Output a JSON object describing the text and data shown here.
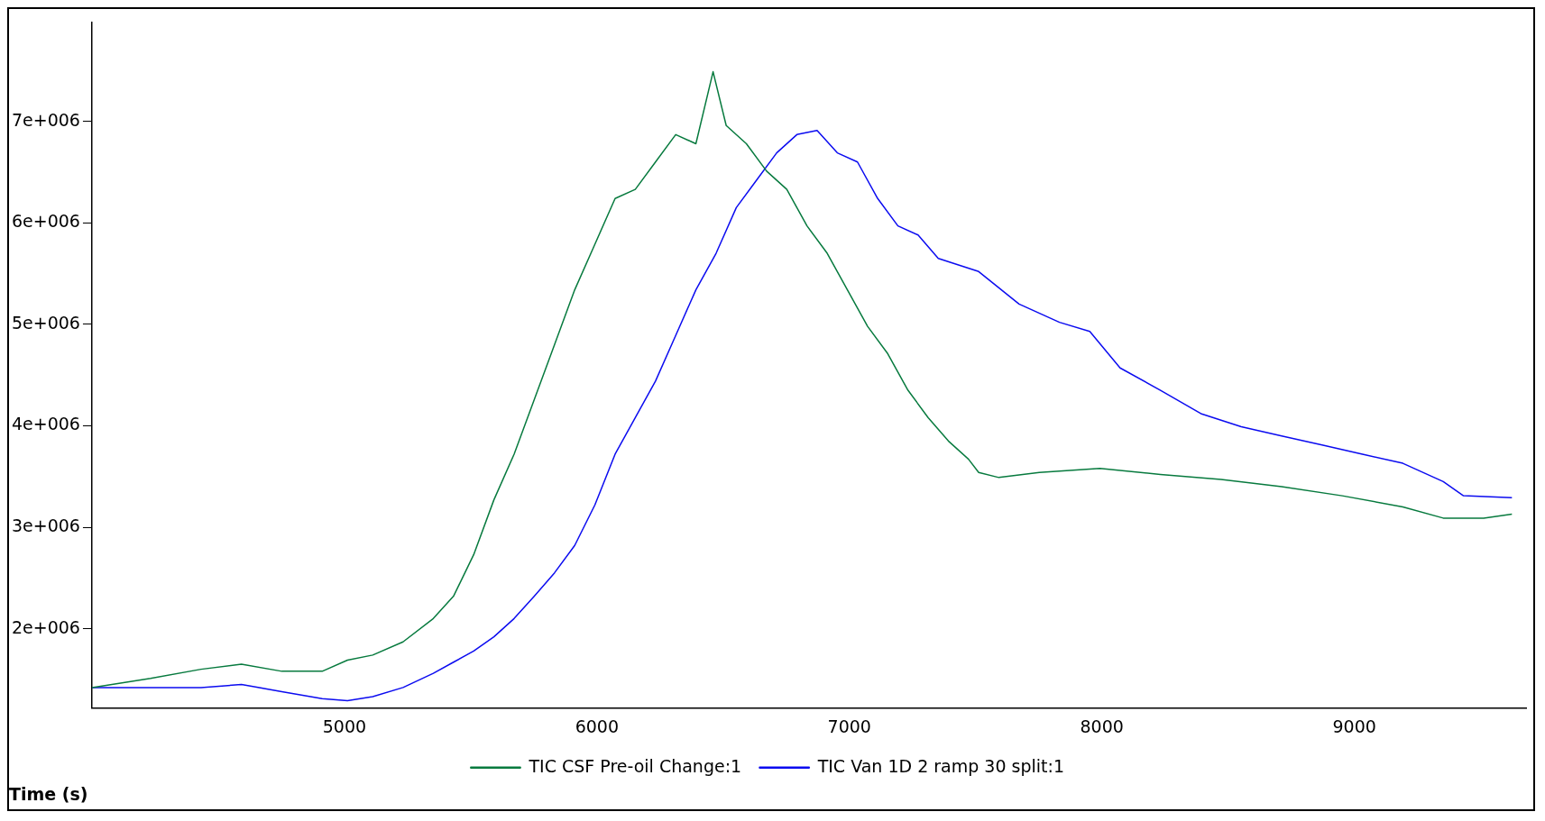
{
  "chart_data": {
    "type": "line",
    "xlabel": "Time (s)",
    "legend": "bottom",
    "marker": "none",
    "line_style": "solid",
    "grid": false,
    "xlim": [
      4000,
      9680
    ],
    "xticks": [
      5000,
      6000,
      7000,
      8000,
      9000
    ],
    "ylim": [
      1220000,
      7980000
    ],
    "yticks": [
      {
        "value": 2000000,
        "label": "2e+006"
      },
      {
        "value": 3000000,
        "label": "3e+006"
      },
      {
        "value": 4000000,
        "label": "4e+006"
      },
      {
        "value": 5000000,
        "label": "5e+006"
      },
      {
        "value": 6000000,
        "label": "6e+006"
      },
      {
        "value": 7000000,
        "label": "7e+006"
      }
    ],
    "series": [
      {
        "name": "TIC CSF Pre-oil Change:1",
        "color": "#077a3e",
        "x": [
          4000,
          4232,
          4432,
          4592,
          4752,
          4912,
          5012,
          5112,
          5232,
          5352,
          5432,
          5512,
          5592,
          5672,
          5752,
          5832,
          5912,
          5992,
          6072,
          6152,
          6232,
          6312,
          6392,
          6460,
          6512,
          6592,
          6672,
          6752,
          6832,
          6912,
          6992,
          7072,
          7152,
          7232,
          7312,
          7392,
          7472,
          7512,
          7592,
          7752,
          7992,
          8232,
          8472,
          8712,
          8952,
          9192,
          9352,
          9512,
          9624
        ],
        "values": [
          1420000,
          1510000,
          1600000,
          1650000,
          1580000,
          1580000,
          1690000,
          1740000,
          1870000,
          2100000,
          2320000,
          2730000,
          3270000,
          3720000,
          4260000,
          4800000,
          5340000,
          5790000,
          6240000,
          6330000,
          6600000,
          6870000,
          6780000,
          7490000,
          6960000,
          6780000,
          6510000,
          6330000,
          5970000,
          5700000,
          5340000,
          4980000,
          4710000,
          4350000,
          4080000,
          3850000,
          3670000,
          3540000,
          3490000,
          3540000,
          3580000,
          3520000,
          3470000,
          3400000,
          3310000,
          3200000,
          3090000,
          3090000,
          3130000
        ]
      },
      {
        "name": "TIC Van 1D 2 ramp 30 split:1",
        "color": "#0b0bf0",
        "x": [
          4000,
          4232,
          4432,
          4592,
          4752,
          4912,
          5012,
          5112,
          5232,
          5352,
          5432,
          5512,
          5592,
          5672,
          5752,
          5832,
          5912,
          5992,
          6072,
          6152,
          6232,
          6312,
          6392,
          6472,
          6552,
          6632,
          6712,
          6792,
          6872,
          6952,
          7032,
          7112,
          7192,
          7272,
          7352,
          7512,
          7672,
          7832,
          7952,
          8072,
          8232,
          8392,
          8552,
          8712,
          8872,
          9032,
          9192,
          9352,
          9432,
          9624
        ],
        "values": [
          1420000,
          1420000,
          1420000,
          1450000,
          1380000,
          1310000,
          1290000,
          1330000,
          1420000,
          1560000,
          1670000,
          1780000,
          1920000,
          2100000,
          2320000,
          2550000,
          2820000,
          3220000,
          3720000,
          4080000,
          4440000,
          4890000,
          5340000,
          5700000,
          6150000,
          6420000,
          6690000,
          6870000,
          6910000,
          6690000,
          6600000,
          6240000,
          5970000,
          5880000,
          5650000,
          5520000,
          5200000,
          5020000,
          4930000,
          4570000,
          4350000,
          4120000,
          3990000,
          3900000,
          3810000,
          3720000,
          3630000,
          3450000,
          3310000,
          3290000
        ]
      }
    ]
  }
}
